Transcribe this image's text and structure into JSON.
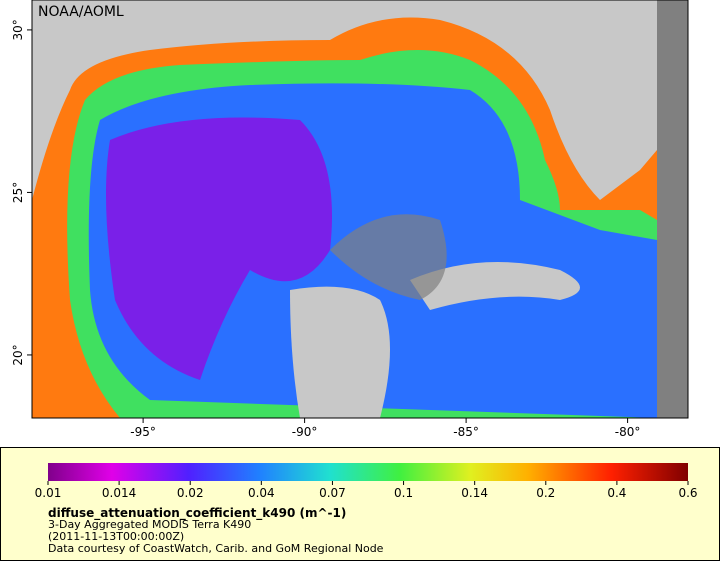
{
  "map": {
    "watermark": "NOAA/AOML",
    "xlim": [
      -98.44,
      -78.13
    ],
    "ylim": [
      18.06,
      30.92
    ],
    "lat_ticks": [
      {
        "value": 30,
        "label": "30°"
      },
      {
        "value": 25,
        "label": "25°"
      },
      {
        "value": 20,
        "label": "20°"
      }
    ],
    "lon_ticks": [
      {
        "value": -95,
        "label": "-95°"
      },
      {
        "value": -90,
        "label": "-90°"
      },
      {
        "value": -85,
        "label": "-85°"
      },
      {
        "value": -80,
        "label": "-80°"
      }
    ]
  },
  "legend": {
    "ticks": [
      0.01,
      0.014,
      0.02,
      0.04,
      0.07,
      0.1,
      0.14,
      0.2,
      0.4,
      0.6
    ],
    "title": "diffuse_attenuation_coefficient_k490 (m^-1)",
    "lines": [
      "3-Day Aggregated MODIS Terra K490",
      "(2011-11-13T00:00:00Z)",
      "Data courtesy of CoastWatch, Carib. and GoM Regional Node"
    ]
  }
}
